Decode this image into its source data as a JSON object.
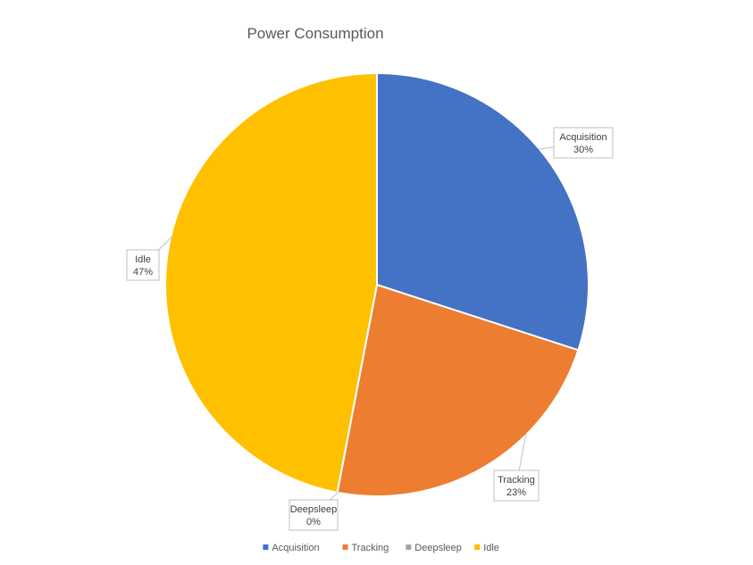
{
  "chart_data": {
    "type": "pie",
    "title": "Power Consumption",
    "categories": [
      "Acquisition",
      "Tracking",
      "Deepsleep",
      "Idle"
    ],
    "values": [
      30,
      23,
      0,
      47
    ],
    "value_labels": [
      "30%",
      "23%",
      "0%",
      "47%"
    ],
    "colors": [
      "#4472C4",
      "#ED7D31",
      "#A5A5A5",
      "#FFC000"
    ],
    "start_angle_deg": 0,
    "direction": "clockwise",
    "legend_position": "bottom",
    "data_labels": "callout"
  }
}
